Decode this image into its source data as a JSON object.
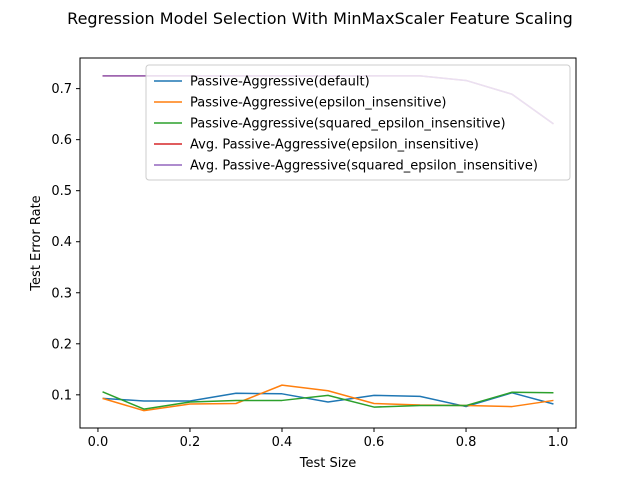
{
  "chart_data": {
    "type": "line",
    "title": "Regression Model Selection With MinMaxScaler Feature Scaling",
    "xlabel": "Test Size",
    "ylabel": "Test Error Rate",
    "xlim": [
      -0.039,
      1.039
    ],
    "ylim": [
      0.035,
      0.76
    ],
    "xticks": [
      0.0,
      0.2,
      0.4,
      0.6,
      0.8,
      1.0
    ],
    "xtick_labels": [
      "0.0",
      "0.2",
      "0.4",
      "0.6",
      "0.8",
      "1.0"
    ],
    "yticks": [
      0.1,
      0.2,
      0.3,
      0.4,
      0.5,
      0.6,
      0.7
    ],
    "ytick_labels": [
      "0.1",
      "0.2",
      "0.3",
      "0.4",
      "0.5",
      "0.6",
      "0.7"
    ],
    "grid": false,
    "legend_position": "upper right",
    "x": [
      0.01,
      0.1,
      0.2,
      0.3,
      0.4,
      0.5,
      0.6,
      0.7,
      0.8,
      0.9,
      0.99
    ],
    "series": [
      {
        "name": "Passive-Aggressive(default)",
        "color": "#1f77b4",
        "values": [
          0.093,
          0.088,
          0.088,
          0.103,
          0.102,
          0.086,
          0.099,
          0.097,
          0.077,
          0.104,
          0.082
        ]
      },
      {
        "name": "Passive-Aggressive(epsilon_insensitive)",
        "color": "#ff7f0e",
        "values": [
          0.093,
          0.069,
          0.082,
          0.083,
          0.119,
          0.108,
          0.083,
          0.08,
          0.079,
          0.077,
          0.089
        ]
      },
      {
        "name": "Passive-Aggressive(squared_epsilon_insensitive)",
        "color": "#2ca02c",
        "values": [
          0.106,
          0.072,
          0.086,
          0.089,
          0.089,
          0.099,
          0.076,
          0.079,
          0.079,
          0.105,
          0.104
        ]
      },
      {
        "name": "Avg. Passive-Aggressive(epsilon_insensitive)",
        "color": "#d62728",
        "values": [
          0.725,
          0.725,
          0.725,
          0.725,
          0.725,
          0.725,
          0.725,
          0.725,
          0.716,
          0.689,
          0.631
        ]
      },
      {
        "name": "Avg. Passive-Aggressive(squared_epsilon_insensitive)",
        "color": "#9467bd",
        "values": [
          0.725,
          0.725,
          0.725,
          0.725,
          0.725,
          0.725,
          0.725,
          0.725,
          0.716,
          0.689,
          0.631
        ]
      }
    ]
  }
}
